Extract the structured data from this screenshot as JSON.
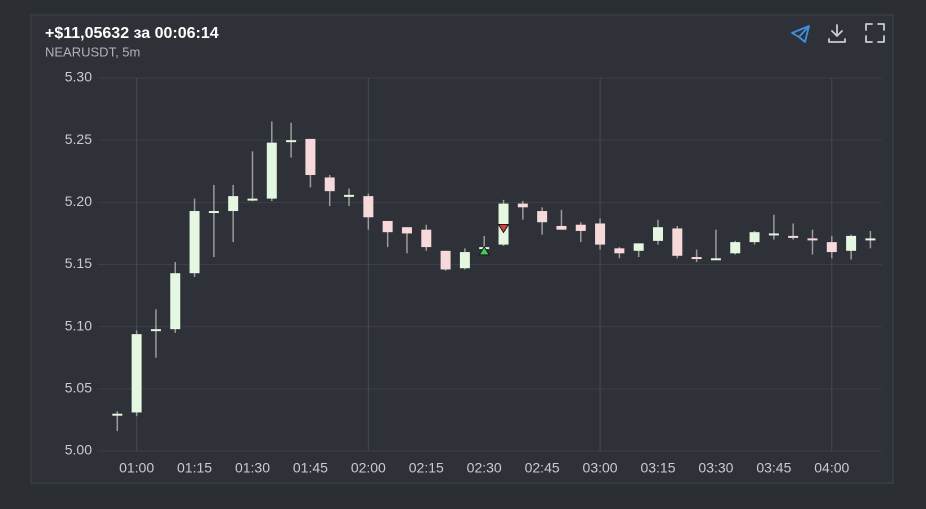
{
  "chart_data": {
    "type": "candlestick",
    "title": "+$11,05632 за 00:06:14",
    "subtitle": "NEARUSDT, 5m",
    "x": [
      "00:55",
      "01:00",
      "01:05",
      "01:10",
      "01:15",
      "01:20",
      "01:25",
      "01:30",
      "01:35",
      "01:40",
      "01:45",
      "01:50",
      "01:55",
      "02:00",
      "02:05",
      "02:10",
      "02:15",
      "02:20",
      "02:25",
      "02:30",
      "02:35",
      "02:40",
      "02:45",
      "02:50",
      "02:55",
      "03:00",
      "03:05",
      "03:10",
      "03:15",
      "03:20",
      "03:25",
      "03:30",
      "03:35",
      "03:40",
      "03:45",
      "03:50",
      "03:55",
      "04:00",
      "04:05",
      "04:10"
    ],
    "open": [
      5.029,
      5.031,
      5.098,
      5.098,
      5.143,
      5.192,
      5.193,
      5.203,
      5.203,
      5.25,
      5.251,
      5.22,
      5.206,
      5.205,
      5.185,
      5.18,
      5.178,
      5.161,
      5.147,
      5.163,
      5.166,
      5.199,
      5.193,
      5.181,
      5.182,
      5.183,
      5.163,
      5.161,
      5.169,
      5.179,
      5.156,
      5.155,
      5.159,
      5.168,
      5.175,
      5.173,
      5.171,
      5.168,
      5.161,
      5.171
    ],
    "high": [
      5.032,
      5.097,
      5.114,
      5.152,
      5.203,
      5.214,
      5.214,
      5.241,
      5.265,
      5.264,
      5.251,
      5.222,
      5.211,
      5.207,
      5.185,
      5.18,
      5.182,
      5.161,
      5.163,
      5.173,
      5.202,
      5.201,
      5.196,
      5.194,
      5.184,
      5.187,
      5.164,
      5.167,
      5.186,
      5.181,
      5.162,
      5.178,
      5.169,
      5.177,
      5.19,
      5.183,
      5.178,
      5.173,
      5.174,
      5.177
    ],
    "low": [
      5.016,
      5.028,
      5.075,
      5.095,
      5.14,
      5.156,
      5.168,
      5.201,
      5.201,
      5.236,
      5.212,
      5.197,
      5.197,
      5.178,
      5.164,
      5.159,
      5.161,
      5.145,
      5.146,
      5.16,
      5.165,
      5.186,
      5.174,
      5.178,
      5.168,
      5.162,
      5.155,
      5.156,
      5.166,
      5.155,
      5.152,
      5.154,
      5.158,
      5.166,
      5.17,
      5.17,
      5.158,
      5.155,
      5.154,
      5.163
    ],
    "close": [
      5.03,
      5.094,
      5.098,
      5.143,
      5.193,
      5.193,
      5.205,
      5.203,
      5.248,
      5.25,
      5.222,
      5.209,
      5.206,
      5.188,
      5.176,
      5.175,
      5.164,
      5.146,
      5.16,
      5.164,
      5.199,
      5.196,
      5.184,
      5.178,
      5.177,
      5.166,
      5.159,
      5.167,
      5.18,
      5.157,
      5.155,
      5.155,
      5.168,
      5.176,
      5.175,
      5.172,
      5.17,
      5.16,
      5.173,
      5.171
    ],
    "up_color": "#e3f7e1",
    "down_color": "#f7d9db",
    "wick_color": "#9b9b9b",
    "markers": [
      {
        "x": "02:30",
        "value": 5.161,
        "shape": "up",
        "color": "#39d353"
      },
      {
        "x": "02:35",
        "value": 5.179,
        "shape": "down",
        "color": "#e23b3b"
      }
    ],
    "xlim": [
      "00:50",
      "04:13"
    ],
    "xticks": [
      "01:00",
      "01:15",
      "01:30",
      "01:45",
      "02:00",
      "02:15",
      "02:30",
      "02:45",
      "03:00",
      "03:15",
      "03:30",
      "03:45",
      "04:00"
    ],
    "ylim": [
      5.0,
      5.3
    ],
    "yticks": [
      {
        "value": 5.0,
        "label": "5.00"
      },
      5.05,
      {
        "value": 5.1,
        "label": "5.10"
      },
      5.15,
      {
        "value": 5.2,
        "label": "5.20"
      },
      5.25,
      {
        "value": 5.3,
        "label": "5.30"
      }
    ],
    "grid": true
  }
}
